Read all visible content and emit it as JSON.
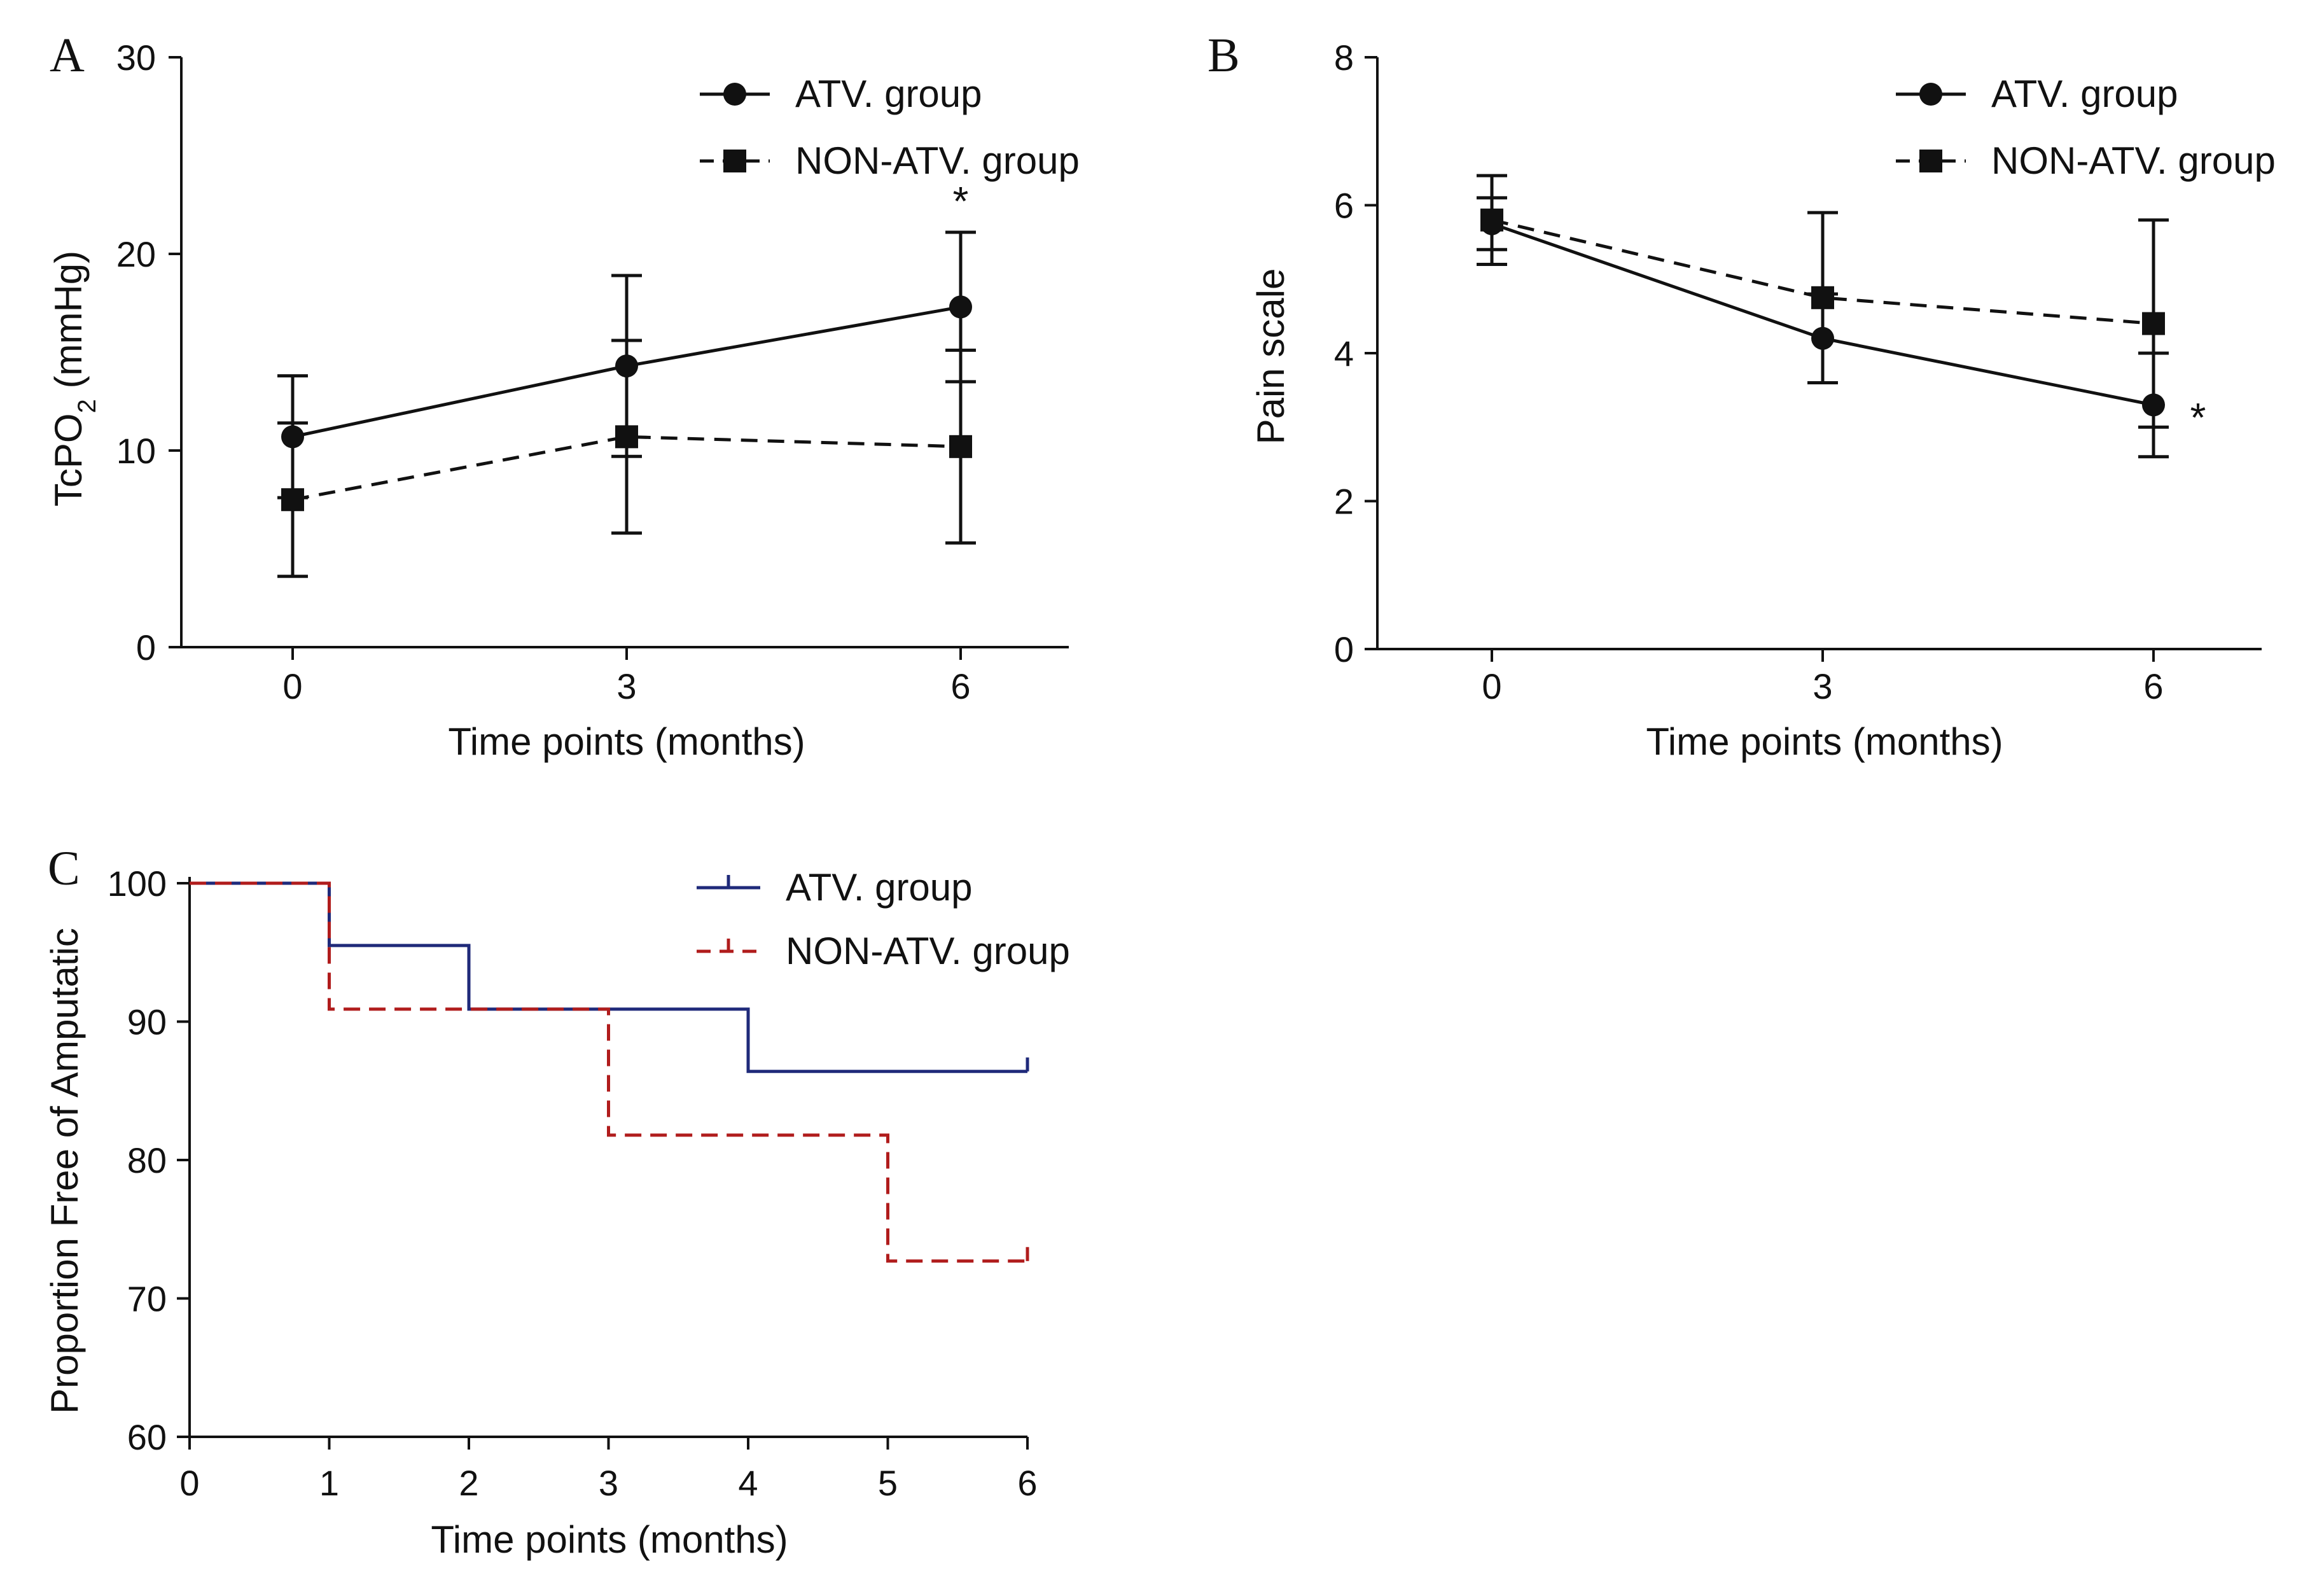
{
  "chart_data": [
    {
      "panel": "A",
      "type": "line",
      "ylabel": "TcPO",
      "ylabel_sub": "2",
      "ylabel_tail": " (mmHg)",
      "xlabel": "Time points (months)",
      "x": [
        0,
        3,
        6
      ],
      "xticks": [
        "0",
        "3",
        "6"
      ],
      "ylim": [
        0,
        30
      ],
      "yticks": [
        "0",
        "10",
        "20",
        "30"
      ],
      "legend_position": "top-right",
      "series": [
        {
          "name": "ATV. group",
          "marker": "circle",
          "line": "solid",
          "values": [
            10.7,
            14.3,
            17.3
          ],
          "err": [
            3.1,
            4.6,
            3.8
          ]
        },
        {
          "name": "NON-ATV. group",
          "marker": "square",
          "line": "dashed",
          "values": [
            7.5,
            10.7,
            10.2
          ],
          "err": [
            3.9,
            4.9,
            4.9
          ]
        }
      ],
      "annotations": [
        {
          "text": "*",
          "x": 6,
          "y": 21.0,
          "placement": "above"
        }
      ]
    },
    {
      "panel": "B",
      "type": "line",
      "ylabel": "Pain scale",
      "xlabel": "Time points (months)",
      "x": [
        0,
        3,
        6
      ],
      "xticks": [
        "0",
        "3",
        "6"
      ],
      "ylim": [
        0,
        8
      ],
      "yticks": [
        "0",
        "2",
        "4",
        "6",
        "8"
      ],
      "legend_position": "top-right",
      "series": [
        {
          "name": "ATV. group",
          "marker": "circle",
          "line": "solid",
          "values": [
            5.75,
            4.2,
            3.3
          ],
          "err": [
            0.35,
            0.6,
            0.7
          ]
        },
        {
          "name": "NON-ATV. group",
          "marker": "square",
          "line": "dashed",
          "values": [
            5.8,
            4.75,
            4.4
          ],
          "err": [
            0.6,
            1.15,
            1.4
          ]
        }
      ],
      "annotations": [
        {
          "text": "*",
          "x": 6,
          "y": 3.2,
          "placement": "right"
        }
      ]
    },
    {
      "panel": "C",
      "type": "line",
      "step": true,
      "ylabel": "Proportion Free of Amputatic",
      "xlabel": "Time points (months)",
      "xlim": [
        0,
        6
      ],
      "xticks": [
        "0",
        "1",
        "2",
        "3",
        "4",
        "5",
        "6"
      ],
      "ylim": [
        60,
        100
      ],
      "yticks": [
        "60",
        "70",
        "80",
        "90",
        "100"
      ],
      "legend_position": "top-right",
      "series": [
        {
          "name": "ATV. group",
          "line": "solid",
          "color": "#1f2a7a",
          "x": [
            0,
            1,
            2,
            4,
            6
          ],
          "values": [
            100,
            95.5,
            90.9,
            86.4,
            86.4
          ]
        },
        {
          "name": "NON-ATV. group",
          "line": "dashed",
          "color": "#b01c1c",
          "x": [
            0,
            1,
            3,
            5,
            6
          ],
          "values": [
            100,
            90.9,
            81.8,
            72.7,
            72.7
          ]
        }
      ]
    }
  ]
}
